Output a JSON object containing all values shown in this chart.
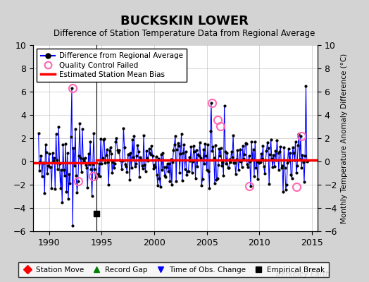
{
  "title": "BUCKSKIN LOWER",
  "subtitle": "Difference of Station Temperature Data from Regional Average",
  "ylabel_right": "Monthly Temperature Anomaly Difference (°C)",
  "xlim": [
    1988.5,
    2015.5
  ],
  "ylim": [
    -6,
    10
  ],
  "yticks": [
    -6,
    -4,
    -2,
    0,
    2,
    4,
    6,
    8,
    10
  ],
  "xticks": [
    1990,
    1995,
    2000,
    2005,
    2010,
    2015
  ],
  "background_color": "#d3d3d3",
  "plot_bg_color": "#ffffff",
  "series_color": "#0000ff",
  "series_marker_color": "#000000",
  "bias_color": "#ff0000",
  "bias_early": [
    -0.12,
    -0.12
  ],
  "bias_late": [
    0.1,
    0.1
  ],
  "bias_breakpoint": 1994.5,
  "vertical_line_x": 1994.5,
  "empirical_break_x": 1994.5,
  "empirical_break_y": -4.5,
  "qc_failed_points": [
    [
      1992.25,
      6.3
    ],
    [
      1992.75,
      -1.7
    ],
    [
      1994.2,
      -1.3
    ],
    [
      2005.5,
      5.0
    ],
    [
      2006.0,
      3.6
    ],
    [
      2006.3,
      3.0
    ],
    [
      2009.0,
      -2.1
    ],
    [
      2013.5,
      -2.2
    ],
    [
      2014.0,
      2.2
    ]
  ],
  "qc_color": "#ff69b4",
  "berkeley_earth_text": "Berkeley Earth",
  "legend1": [
    {
      "label": "Difference from Regional Average",
      "color": "#0000ff",
      "marker": "o",
      "ls": "-"
    },
    {
      "label": "Quality Control Failed",
      "color": "#ff69b4",
      "marker": "o",
      "ls": "none"
    },
    {
      "label": "Estimated Station Mean Bias",
      "color": "#ff0000",
      "marker": "none",
      "ls": "-"
    }
  ],
  "legend2": [
    {
      "label": "Station Move",
      "color": "#ff0000",
      "marker": "D"
    },
    {
      "label": "Record Gap",
      "color": "#008000",
      "marker": "^"
    },
    {
      "label": "Time of Obs. Change",
      "color": "#0000ff",
      "marker": "v"
    },
    {
      "label": "Empirical Break",
      "color": "#000000",
      "marker": "s"
    }
  ]
}
